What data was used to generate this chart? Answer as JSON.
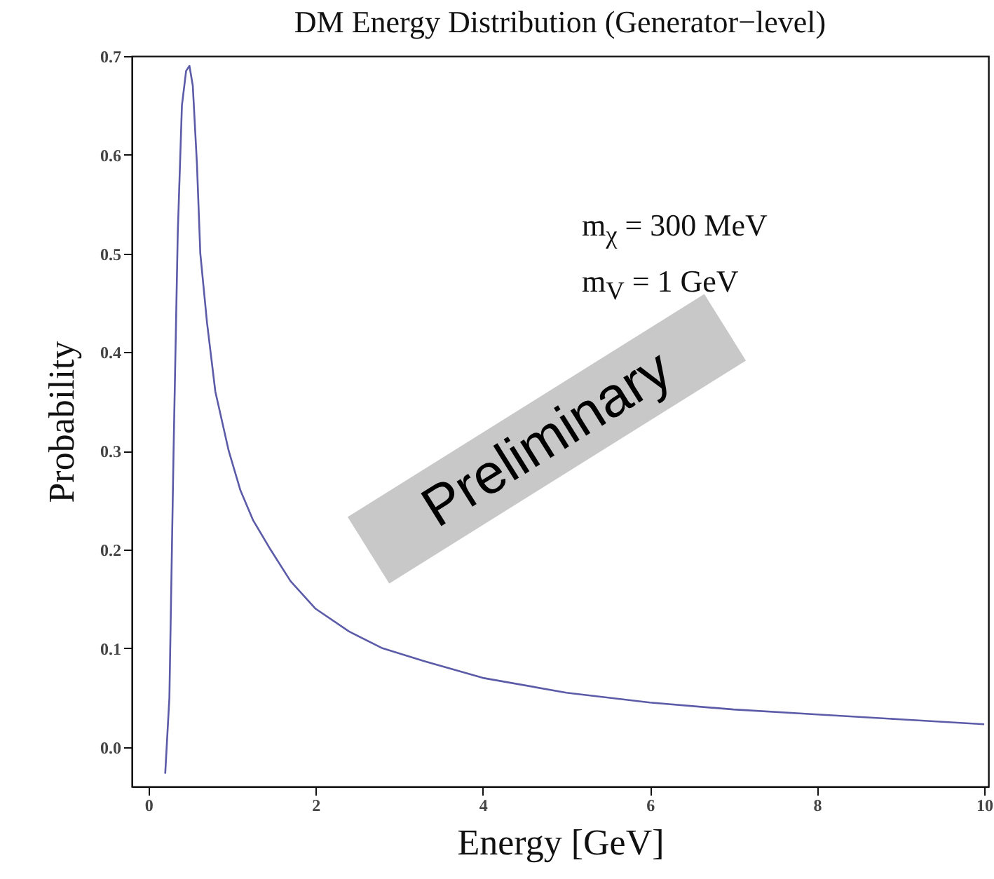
{
  "chart_data": {
    "type": "line",
    "title": "DM Energy Distribution (Generator−level)",
    "xlabel": "Energy   [GeV]",
    "ylabel": "Probability",
    "annotations": [
      "m$_{χ}$ = 300 MeV",
      "m$_{V}$ = 1 GeV",
      "Preliminary"
    ],
    "x": [
      0.2,
      0.25,
      0.3,
      0.35,
      0.4,
      0.45,
      0.49,
      0.53,
      0.58,
      0.62,
      0.7,
      0.8,
      0.96,
      1.1,
      1.25,
      1.46,
      1.7,
      2.0,
      2.4,
      2.8,
      3.3,
      4.0,
      5.0,
      6.0,
      7.0,
      8.0,
      9.0,
      10.0
    ],
    "series": [
      {
        "color": "#5b5ba8",
        "values": [
          -0.027,
          0.05,
          0.3,
          0.52,
          0.65,
          0.685,
          0.69,
          0.67,
          0.59,
          0.5,
          0.43,
          0.36,
          0.3,
          0.26,
          0.23,
          0.2,
          0.168,
          0.14,
          0.117,
          0.1,
          0.087,
          0.07,
          0.055,
          0.045,
          0.038,
          0.033,
          0.028,
          0.023
        ]
      }
    ],
    "xlim": [
      -0.2,
      10.05
    ],
    "ylim": [
      -0.04,
      0.7
    ],
    "xticks": [
      0,
      2,
      4,
      6,
      8,
      10
    ],
    "yticks": [
      {
        "value": 0,
        "label": "0.0"
      },
      0.1,
      0.2,
      0.3,
      0.4,
      0.5,
      0.6,
      0.7
    ],
    "grid": false,
    "marker": "none",
    "line_style": "solid"
  }
}
